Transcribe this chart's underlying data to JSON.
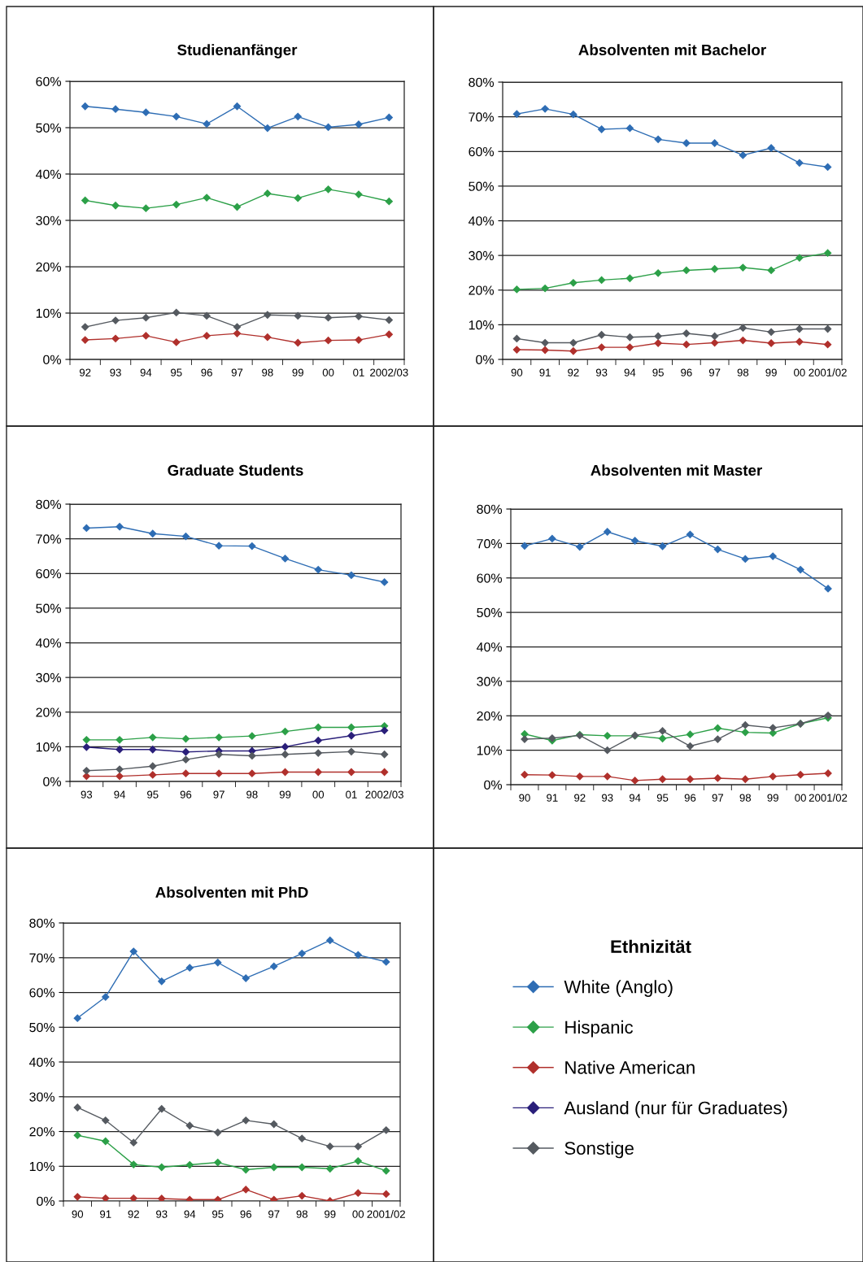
{
  "chart_data": [
    {
      "type": "line",
      "title": "Studienanfänger",
      "categories": [
        "92",
        "93",
        "94",
        "95",
        "96",
        "97",
        "98",
        "99",
        "00",
        "01",
        "2002/03"
      ],
      "ylim": [
        0,
        60
      ],
      "yticks": [
        {
          "value": 0,
          "label": "0%"
        },
        {
          "value": 10,
          "label": "10%"
        },
        {
          "value": 20,
          "label": "20%"
        },
        {
          "value": 30,
          "label": "30%"
        },
        {
          "value": 40,
          "label": "40%"
        },
        {
          "value": 50,
          "label": "50%"
        },
        {
          "value": 60,
          "label": "60%"
        }
      ],
      "grid": "y",
      "marker": "diamond",
      "series": [
        {
          "color": "#2e6db4",
          "values": [
            54.6,
            54.0,
            53.3,
            52.4,
            50.8,
            54.6,
            49.9,
            52.4,
            50.1,
            50.7,
            52.2
          ]
        },
        {
          "color": "#2ca048",
          "values": [
            34.3,
            33.2,
            32.6,
            33.4,
            34.9,
            32.9,
            35.8,
            34.8,
            36.7,
            35.6,
            34.1
          ]
        },
        {
          "color": "#b0302c",
          "values": [
            4.2,
            4.5,
            5.1,
            3.7,
            5.1,
            5.6,
            4.8,
            3.6,
            4.1,
            4.2,
            5.4
          ]
        },
        {
          "color": "#555a60",
          "values": [
            7.0,
            8.4,
            9.0,
            10.1,
            9.4,
            7.0,
            9.6,
            9.4,
            9.0,
            9.3,
            8.5
          ]
        }
      ]
    },
    {
      "type": "line",
      "title": "Absolventen mit Bachelor",
      "categories": [
        "90",
        "91",
        "92",
        "93",
        "94",
        "95",
        "96",
        "97",
        "98",
        "99",
        "00",
        "2001/02"
      ],
      "ylim": [
        0,
        80
      ],
      "yticks": [
        {
          "value": 0,
          "label": "0%"
        },
        {
          "value": 10,
          "label": "10%"
        },
        {
          "value": 20,
          "label": "20%"
        },
        {
          "value": 30,
          "label": "30%"
        },
        {
          "value": 40,
          "label": "40%"
        },
        {
          "value": 50,
          "label": "50%"
        },
        {
          "value": 60,
          "label": "60%"
        },
        {
          "value": 70,
          "label": "70%"
        },
        {
          "value": 80,
          "label": "80%"
        }
      ],
      "grid": "y",
      "marker": "diamond",
      "series": [
        {
          "color": "#2e6db4",
          "values": [
            70.8,
            72.3,
            70.7,
            66.4,
            66.7,
            63.5,
            62.4,
            62.4,
            58.9,
            61.0,
            56.7,
            55.5
          ]
        },
        {
          "color": "#2ca048",
          "values": [
            20.2,
            20.5,
            22.1,
            22.9,
            23.4,
            24.9,
            25.7,
            26.1,
            26.5,
            25.7,
            29.3,
            30.7
          ]
        },
        {
          "color": "#b0302c",
          "values": [
            2.8,
            2.7,
            2.4,
            3.5,
            3.5,
            4.7,
            4.3,
            4.8,
            5.5,
            4.7,
            5.1,
            4.3
          ]
        },
        {
          "color": "#555a60",
          "values": [
            6.0,
            4.8,
            4.8,
            7.1,
            6.4,
            6.7,
            7.5,
            6.7,
            9.1,
            7.9,
            8.8,
            8.8
          ]
        }
      ]
    },
    {
      "type": "line",
      "title": "Graduate Students",
      "categories": [
        "93",
        "94",
        "95",
        "96",
        "97",
        "98",
        "99",
        "00",
        "01",
        "2002/03"
      ],
      "ylim": [
        0,
        80
      ],
      "yticks": [
        {
          "value": 0,
          "label": "0%"
        },
        {
          "value": 10,
          "label": "10%"
        },
        {
          "value": 20,
          "label": "20%"
        },
        {
          "value": 30,
          "label": "30%"
        },
        {
          "value": 40,
          "label": "40%"
        },
        {
          "value": 50,
          "label": "50%"
        },
        {
          "value": 60,
          "label": "60%"
        },
        {
          "value": 70,
          "label": "70%"
        },
        {
          "value": 80,
          "label": "80%"
        }
      ],
      "grid": "y",
      "marker": "diamond",
      "series": [
        {
          "color": "#2e6db4",
          "values": [
            73.1,
            73.5,
            71.5,
            70.7,
            68.0,
            67.9,
            64.3,
            61.1,
            59.5,
            57.5
          ]
        },
        {
          "color": "#2ca048",
          "values": [
            12.0,
            12.0,
            12.7,
            12.3,
            12.7,
            13.1,
            14.4,
            15.6,
            15.6,
            16.0
          ]
        },
        {
          "color": "#b0302c",
          "values": [
            1.5,
            1.5,
            1.9,
            2.3,
            2.3,
            2.3,
            2.7,
            2.7,
            2.7,
            2.7
          ]
        },
        {
          "color": "#2a1f7a",
          "values": [
            9.9,
            9.2,
            9.2,
            8.5,
            8.8,
            8.8,
            10.0,
            11.8,
            13.2,
            14.7
          ]
        },
        {
          "color": "#555a60",
          "values": [
            3.1,
            3.5,
            4.4,
            6.3,
            7.8,
            7.4,
            7.8,
            8.2,
            8.6,
            7.8
          ]
        }
      ]
    },
    {
      "type": "line",
      "title": "Absolventen mit Master",
      "categories": [
        "90",
        "91",
        "92",
        "93",
        "94",
        "95",
        "96",
        "97",
        "98",
        "99",
        "00",
        "2001/02"
      ],
      "ylim": [
        0,
        80
      ],
      "yticks": [
        {
          "value": 0,
          "label": "0%"
        },
        {
          "value": 10,
          "label": "10%"
        },
        {
          "value": 20,
          "label": "20%"
        },
        {
          "value": 30,
          "label": "30%"
        },
        {
          "value": 40,
          "label": "40%"
        },
        {
          "value": 50,
          "label": "50%"
        },
        {
          "value": 60,
          "label": "60%"
        },
        {
          "value": 70,
          "label": "70%"
        },
        {
          "value": 80,
          "label": "80%"
        }
      ],
      "grid": "y",
      "marker": "diamond",
      "series": [
        {
          "color": "#2e6db4",
          "values": [
            69.3,
            71.4,
            69.0,
            73.4,
            70.8,
            69.2,
            72.6,
            68.3,
            65.5,
            66.3,
            62.4,
            56.9
          ]
        },
        {
          "color": "#2ca048",
          "values": [
            14.7,
            12.8,
            14.5,
            14.2,
            14.2,
            13.4,
            14.6,
            16.4,
            15.2,
            15.0,
            17.7,
            19.4
          ]
        },
        {
          "color": "#b0302c",
          "values": [
            2.9,
            2.8,
            2.4,
            2.4,
            1.2,
            1.6,
            1.6,
            1.9,
            1.6,
            2.4,
            2.9,
            3.3
          ]
        },
        {
          "color": "#555a60",
          "values": [
            13.2,
            13.5,
            14.3,
            10.0,
            14.3,
            15.6,
            11.2,
            13.2,
            17.3,
            16.5,
            17.7,
            20.1
          ]
        }
      ]
    },
    {
      "type": "line",
      "title": "Absolventen mit PhD",
      "legend": "right",
      "legend_title": "Ethnizität",
      "categories": [
        "90",
        "91",
        "92",
        "93",
        "94",
        "95",
        "96",
        "97",
        "98",
        "99",
        "00",
        "2001/02"
      ],
      "ylim": [
        0,
        80
      ],
      "yticks": [
        {
          "value": 0,
          "label": "0%"
        },
        {
          "value": 10,
          "label": "10%"
        },
        {
          "value": 20,
          "label": "20%"
        },
        {
          "value": 30,
          "label": "30%"
        },
        {
          "value": 40,
          "label": "40%"
        },
        {
          "value": 50,
          "label": "50%"
        },
        {
          "value": 60,
          "label": "60%"
        },
        {
          "value": 70,
          "label": "70%"
        },
        {
          "value": 80,
          "label": "80%"
        }
      ],
      "grid": "y",
      "marker": "diamond",
      "series": [
        {
          "name": "White (Anglo)",
          "color": "#2e6db4",
          "values": [
            52.6,
            58.7,
            71.8,
            63.2,
            67.1,
            68.6,
            64.1,
            67.5,
            71.2,
            75.0,
            70.8,
            68.8
          ]
        },
        {
          "name": "Hispanic",
          "color": "#2ca048",
          "values": [
            18.9,
            17.2,
            10.5,
            9.7,
            10.4,
            11.1,
            9.0,
            9.7,
            9.7,
            9.3,
            11.5,
            8.7
          ]
        },
        {
          "name": "Native American",
          "color": "#b0302c",
          "values": [
            1.2,
            0.8,
            0.8,
            0.7,
            0.4,
            0.4,
            3.3,
            0.4,
            1.5,
            0.0,
            2.3,
            2.0
          ]
        },
        {
          "name": "Ausland (nur für Graduates)",
          "color": "#2a1f7a",
          "values": [
            null,
            null,
            null,
            null,
            null,
            null,
            null,
            null,
            null,
            null,
            null,
            null
          ]
        },
        {
          "name": "Sonstige",
          "color": "#555a60",
          "values": [
            26.9,
            23.2,
            16.8,
            26.5,
            21.7,
            19.7,
            23.2,
            22.1,
            18.0,
            15.7,
            15.7,
            20.4
          ]
        }
      ]
    }
  ]
}
